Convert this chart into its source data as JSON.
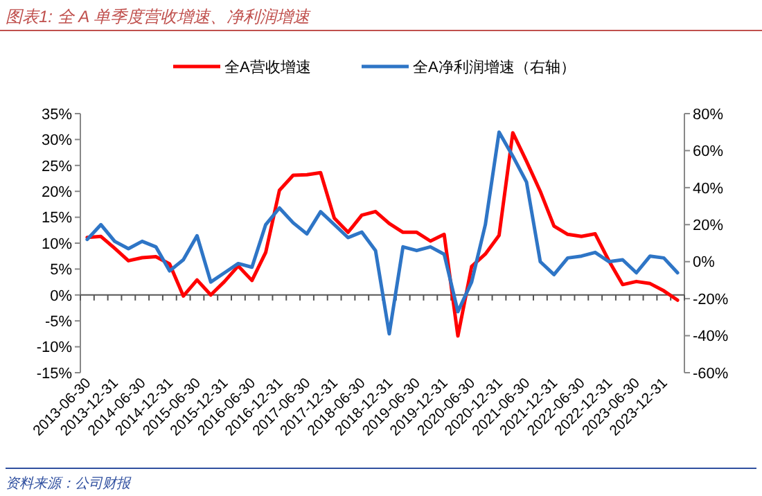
{
  "chart_data": {
    "type": "line",
    "title": "图表1: 全 A 单季度营收增速、净利润增速",
    "categories": [
      "2013-06-30",
      null,
      "2013-12-31",
      null,
      "2014-06-30",
      null,
      "2014-12-31",
      null,
      "2015-06-30",
      null,
      "2015-12-31",
      null,
      "2016-06-30",
      null,
      "2016-12-31",
      null,
      "2017-06-30",
      null,
      "2017-12-31",
      null,
      "2018-06-30",
      null,
      "2018-12-31",
      null,
      "2019-06-30",
      null,
      "2019-12-31",
      null,
      "2020-06-30",
      null,
      "2020-12-31",
      null,
      "2021-06-30",
      null,
      "2021-12-31",
      null,
      "2022-06-30",
      null,
      "2022-12-31",
      null,
      "2023-06-30",
      null,
      "2023-12-31",
      null
    ],
    "series": [
      {
        "name": "全A营收增速",
        "color": "#ff0000",
        "values": [
          11.1,
          11.3,
          9.0,
          6.6,
          7.2,
          7.4,
          6.0,
          -0.2,
          2.9,
          0,
          2.6,
          5.6,
          2.8,
          8.2,
          20.2,
          23.1,
          23.2,
          23.6,
          14.8,
          12.1,
          15.4,
          16.1,
          13.8,
          12.1,
          12.1,
          10.4,
          11.7,
          -7.9,
          5.5,
          7.9,
          11.5,
          31.3,
          25.8,
          20.0,
          13.3,
          11.7,
          11.3,
          11.8,
          6.6,
          2.0,
          2.6,
          2.2,
          0.8,
          -1.0
        ]
      },
      {
        "name": "全A净利润增速（右轴）",
        "color": "#2e75c6",
        "axis": "y2",
        "values": [
          12,
          20,
          11,
          7,
          11,
          8,
          -5,
          1,
          14,
          -11,
          -6,
          -1,
          -3,
          20,
          29,
          21,
          15,
          27,
          20,
          13,
          16,
          6,
          -39,
          8,
          6,
          8,
          4,
          -27,
          -11,
          20,
          70,
          57,
          43,
          0,
          -7,
          2,
          3,
          5,
          0,
          1,
          -6,
          3,
          2,
          -6
        ]
      }
    ],
    "ylim": [
      -15,
      35
    ],
    "yticks": [
      {
        "value": -15,
        "label": "-15%"
      },
      {
        "value": -10,
        "label": "-10%"
      },
      {
        "value": -5,
        "label": "-5%"
      },
      {
        "value": 0,
        "label": "0%"
      },
      {
        "value": 5,
        "label": "5%"
      },
      {
        "value": 10,
        "label": "10%"
      },
      {
        "value": 15,
        "label": "15%"
      },
      {
        "value": 20,
        "label": "20%"
      },
      {
        "value": 25,
        "label": "25%"
      },
      {
        "value": 30,
        "label": "30%"
      },
      {
        "value": 35,
        "label": "35%"
      }
    ],
    "y2lim": [
      -60,
      80
    ],
    "y2ticks": [
      {
        "value": -60,
        "label": "-60%"
      },
      {
        "value": -40,
        "label": "-40%"
      },
      {
        "value": -20,
        "label": "-20%"
      },
      {
        "value": 0,
        "label": "0%"
      },
      {
        "value": 20,
        "label": "20%"
      },
      {
        "value": 40,
        "label": "40%"
      },
      {
        "value": 60,
        "label": "60%"
      },
      {
        "value": 80,
        "label": "80%"
      }
    ],
    "legend": "top",
    "marker": "none",
    "line_style": "solid",
    "annotations": [
      "资料来源：公司财报"
    ]
  }
}
